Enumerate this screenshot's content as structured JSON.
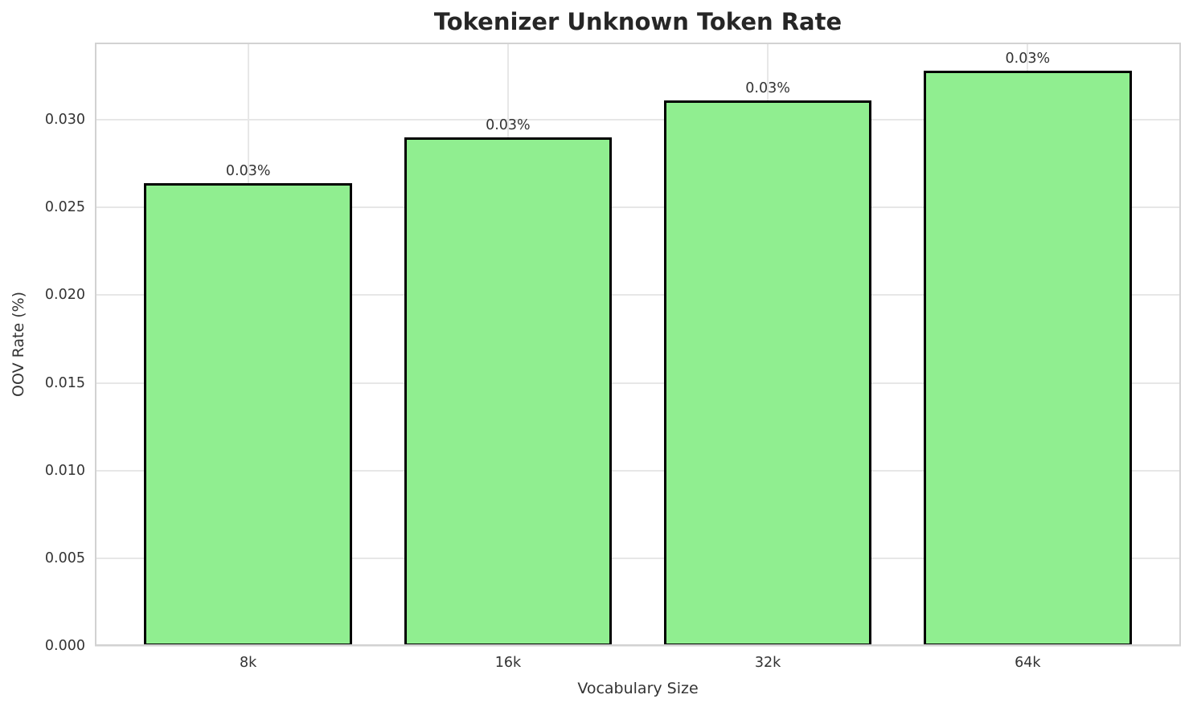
{
  "chart_data": {
    "type": "bar",
    "title": "Tokenizer Unknown Token Rate",
    "xlabel": "Vocabulary Size",
    "ylabel": "OOV Rate (%)",
    "categories": [
      "8k",
      "16k",
      "32k",
      "64k"
    ],
    "values": [
      0.0264,
      0.029,
      0.0311,
      0.0328
    ],
    "bar_labels": [
      "0.03%",
      "0.03%",
      "0.03%",
      "0.03%"
    ],
    "yticks": [
      0.0,
      0.005,
      0.01,
      0.015,
      0.02,
      0.025,
      0.03
    ],
    "ytick_labels": [
      "0.000",
      "0.005",
      "0.010",
      "0.015",
      "0.020",
      "0.025",
      "0.030"
    ],
    "ylim": [
      0,
      0.0344
    ],
    "xlim": [
      -0.59,
      3.59
    ],
    "bar_width": 0.8,
    "grid": true,
    "legend": "none",
    "colors": {
      "bar_fill": "#90EE90",
      "bar_edge": "#000000",
      "grid_color": "#e7e7e7",
      "spine_color": "#d2d2d2",
      "text_color": "#333333",
      "title_color": "#262626",
      "background": "#ffffff"
    }
  }
}
